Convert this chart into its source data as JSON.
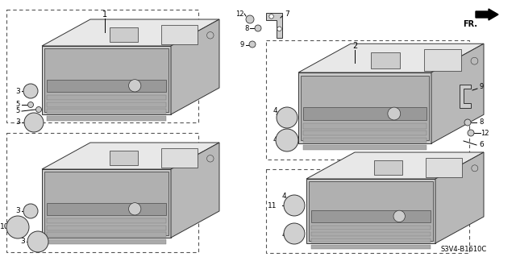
{
  "bg_color": "#ffffff",
  "diagram_code": "S3V4-B1610C",
  "fr_label": "FR.",
  "label_color": "#000000",
  "line_color": "#000000",
  "face_front": "#c8c8c8",
  "face_top": "#e8e8e8",
  "face_right": "#b8b8b8",
  "edge_color": "#333333",
  "knob_fill": "#d8d8d8",
  "slot_fill": "#888888",
  "box_color": "#aaaaaa",
  "dashed_color": "#555555",
  "bracket_fill": "#d0d0d0"
}
